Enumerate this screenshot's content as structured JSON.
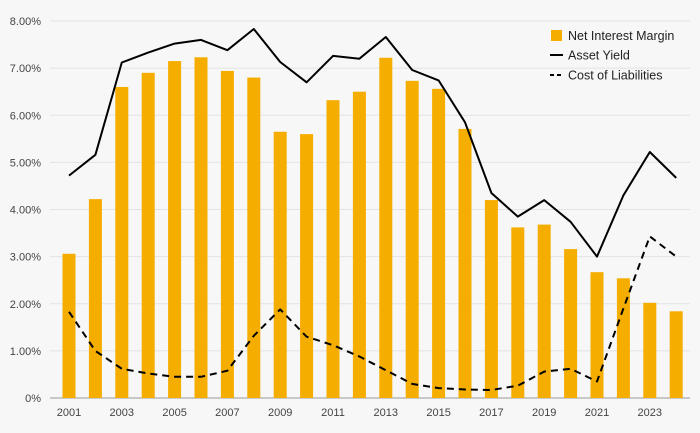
{
  "chart_data": {
    "type": "bar",
    "title": "",
    "xlabel": "",
    "ylabel": "",
    "ylim": [
      0,
      8
    ],
    "yticks": [
      "0%",
      "1.00%",
      "2.00%",
      "3.00%",
      "4.00%",
      "5.00%",
      "6.00%",
      "7.00%",
      "8.00%"
    ],
    "xticks": [
      "2001",
      "2003",
      "2005",
      "2007",
      "2009",
      "2011",
      "2013",
      "2015",
      "2017",
      "2019",
      "2021",
      "2023"
    ],
    "categories": [
      "2001",
      "2002",
      "2003",
      "2004",
      "2005",
      "2006",
      "2007",
      "2008",
      "2009",
      "2010",
      "2011",
      "2012",
      "2013",
      "2014",
      "2015",
      "2016",
      "2017",
      "2018",
      "2019",
      "2020",
      "2021",
      "2022",
      "2023",
      "2024"
    ],
    "series": [
      {
        "name": "Net Interest Margin",
        "kind": "bar",
        "color": "#f5ad00",
        "values": [
          3.06,
          4.22,
          6.6,
          6.9,
          7.15,
          7.23,
          6.94,
          6.8,
          5.65,
          5.6,
          6.32,
          6.5,
          7.22,
          6.73,
          6.56,
          5.71,
          4.2,
          3.62,
          3.68,
          3.16,
          2.67,
          2.54,
          2.02,
          1.84
        ]
      },
      {
        "name": "Asset Yield",
        "kind": "line",
        "color": "#000000",
        "dash": "solid",
        "values": [
          4.72,
          5.16,
          7.12,
          7.33,
          7.52,
          7.6,
          7.38,
          7.83,
          7.13,
          6.7,
          7.26,
          7.2,
          7.66,
          6.96,
          6.74,
          5.85,
          4.35,
          3.85,
          4.2,
          3.74,
          3.0,
          4.3,
          5.22,
          4.67
        ]
      },
      {
        "name": "Cost of Liabilities",
        "kind": "line",
        "color": "#000000",
        "dash": "dashed",
        "values": [
          1.83,
          1.0,
          0.62,
          0.52,
          0.45,
          0.45,
          0.58,
          1.32,
          1.88,
          1.3,
          1.12,
          0.88,
          0.59,
          0.3,
          0.21,
          0.18,
          0.17,
          0.26,
          0.56,
          0.62,
          0.35,
          1.9,
          3.43,
          3.0
        ]
      }
    ],
    "legend_position": "top-right",
    "grid": true
  }
}
